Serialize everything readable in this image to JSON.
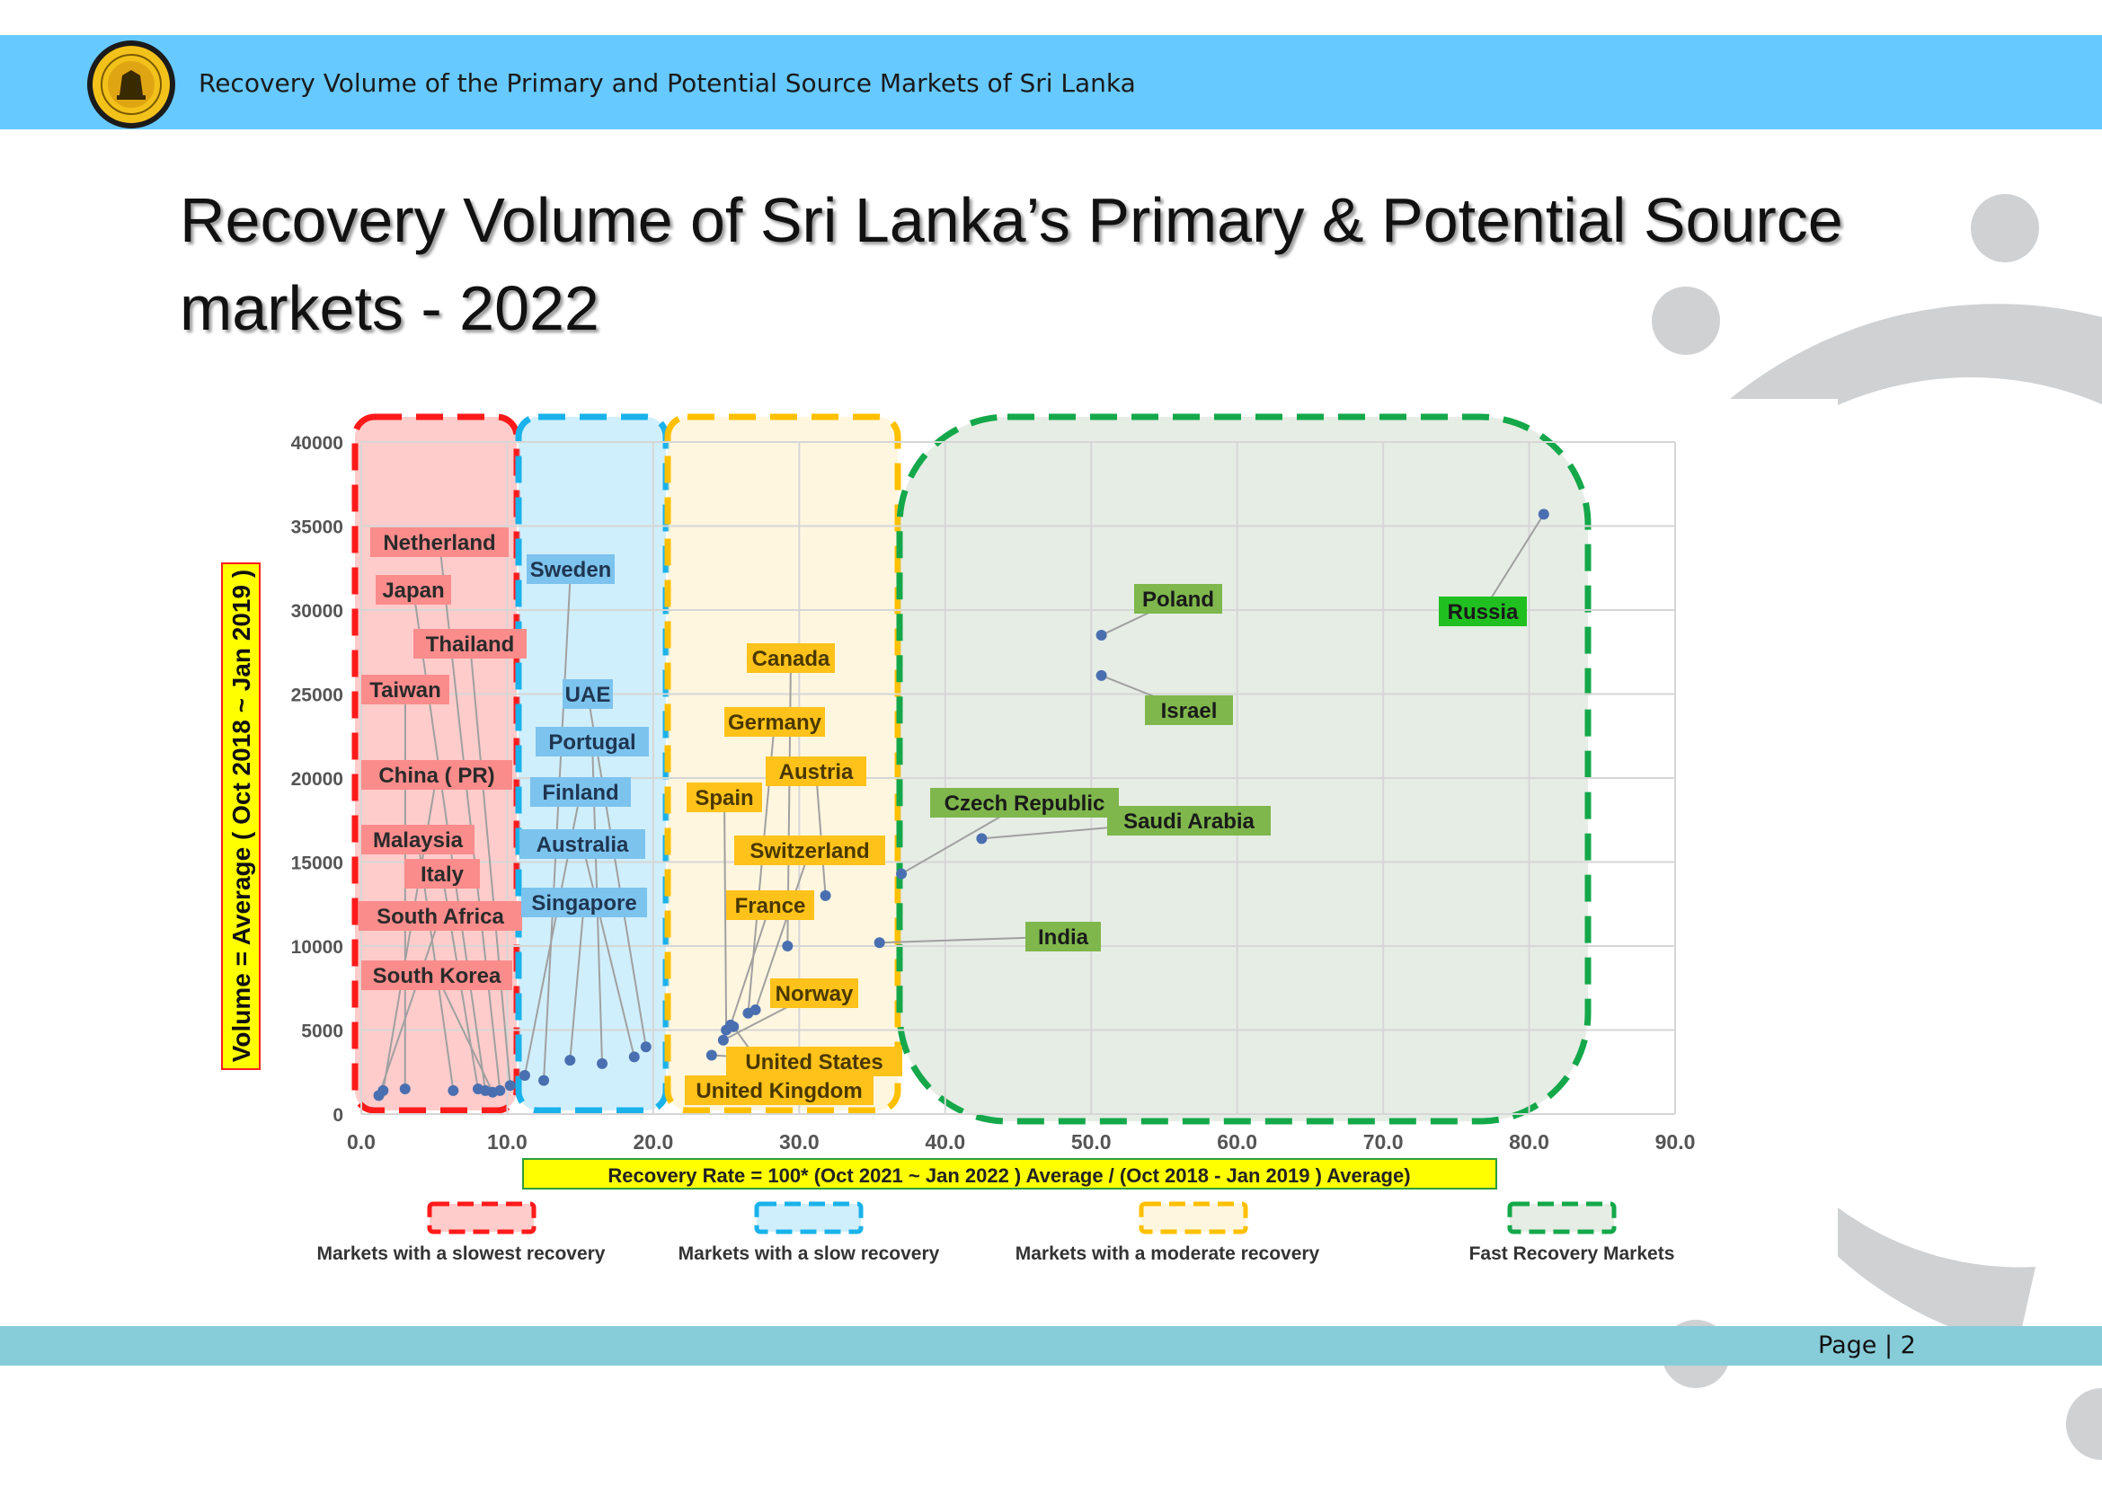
{
  "header": {
    "text": "Recovery Volume of the Primary and Potential Source Markets of Sri Lanka"
  },
  "title": "Recovery Volume of Sri Lanka’s Primary & Potential Source markets - 2022",
  "footer": {
    "page_label": "Page | 2"
  },
  "colors": {
    "header_band": "#66c9ff",
    "footer_band": "#87ccd9",
    "slowest": "#ff1a1a",
    "slow": "#1ab2ea",
    "moderate": "#ffc000",
    "fast": "#14a84a",
    "point": "#4a6fb0"
  },
  "chart_data": {
    "type": "scatter",
    "title": "",
    "xlabel": "Recovery Rate = 100* (Oct 2021 ~ Jan 2022 ) Average / (Oct 2018  - Jan 2019 )  Average)",
    "ylabel": "Volume = Average ( Oct 2018 ~ Jan 2019 )",
    "xlim": [
      0,
      90
    ],
    "ylim": [
      0,
      40000
    ],
    "x_ticks": [
      "0.0",
      "10.0",
      "20.0",
      "30.0",
      "40.0",
      "50.0",
      "60.0",
      "70.0",
      "80.0",
      "90.0"
    ],
    "y_ticks": [
      "0",
      "5000",
      "10000",
      "15000",
      "20000",
      "25000",
      "30000",
      "35000",
      "40000"
    ],
    "grid": true,
    "groups": [
      {
        "name": "Markets with a slowest recovery",
        "color": "#ff1a1a",
        "x_range": [
          0,
          10.5
        ]
      },
      {
        "name": "Markets with a slow recovery",
        "color": "#1ab2ea",
        "x_range": [
          10.5,
          21
        ]
      },
      {
        "name": "Markets with a moderate recovery",
        "color": "#ffc000",
        "x_range": [
          21,
          37
        ]
      },
      {
        "name": "Fast Recovery Markets",
        "color": "#14a84a",
        "x_range": [
          37,
          84
        ]
      }
    ],
    "points": [
      {
        "label": "Netherland",
        "x": 9.5,
        "y": 1400,
        "group": 0
      },
      {
        "label": "Japan",
        "x": 8.5,
        "y": 1400,
        "group": 0
      },
      {
        "label": "Thailand",
        "x": 10.2,
        "y": 1700,
        "group": 0
      },
      {
        "label": "Taiwan",
        "x": 3.0,
        "y": 1500,
        "group": 0
      },
      {
        "label": "China ( PR)",
        "x": 1.5,
        "y": 1400,
        "group": 0
      },
      {
        "label": "Malaysia",
        "x": 6.3,
        "y": 1400,
        "group": 0
      },
      {
        "label": "Italy",
        "x": 8.0,
        "y": 1500,
        "group": 0
      },
      {
        "label": "South Africa",
        "x": 1.2,
        "y": 1100,
        "group": 0
      },
      {
        "label": "South Korea",
        "x": 9.0,
        "y": 1300,
        "group": 0
      },
      {
        "label": "Sweden",
        "x": 12.5,
        "y": 2000,
        "group": 1
      },
      {
        "label": "UAE",
        "x": 19.5,
        "y": 4000,
        "group": 1
      },
      {
        "label": "Portugal",
        "x": 16.5,
        "y": 3000,
        "group": 1
      },
      {
        "label": "Finland",
        "x": 11.2,
        "y": 2300,
        "group": 1
      },
      {
        "label": "Australia",
        "x": 18.7,
        "y": 3400,
        "group": 1
      },
      {
        "label": "Singapore",
        "x": 14.3,
        "y": 3200,
        "group": 1
      },
      {
        "label": "Canada",
        "x": 29.2,
        "y": 10000,
        "group": 2
      },
      {
        "label": "Germany",
        "x": 26.5,
        "y": 6000,
        "group": 2
      },
      {
        "label": "Austria",
        "x": 31.8,
        "y": 13000,
        "group": 2
      },
      {
        "label": "Spain",
        "x": 25.0,
        "y": 5000,
        "group": 2
      },
      {
        "label": "Switzerland",
        "x": 27.0,
        "y": 6200,
        "group": 2
      },
      {
        "label": "France",
        "x": 25.3,
        "y": 5300,
        "group": 2
      },
      {
        "label": "Norway",
        "x": 24.8,
        "y": 4400,
        "group": 2
      },
      {
        "label": "United States",
        "x": 24.0,
        "y": 3500,
        "group": 2
      },
      {
        "label": "United Kingdom",
        "x": 25.5,
        "y": 5200,
        "group": 2
      },
      {
        "label": "Czech Republic",
        "x": 37.0,
        "y": 14300,
        "group": 3
      },
      {
        "label": "Saudi Arabia",
        "x": 42.5,
        "y": 16400,
        "group": 3
      },
      {
        "label": "India",
        "x": 35.5,
        "y": 10200,
        "group": 3
      },
      {
        "label": "Poland",
        "x": 50.7,
        "y": 28500,
        "group": 3
      },
      {
        "label": "Israel",
        "x": 50.7,
        "y": 26100,
        "group": 3
      },
      {
        "label": "Russia",
        "x": 81.0,
        "y": 35700,
        "group": 3
      }
    ]
  }
}
